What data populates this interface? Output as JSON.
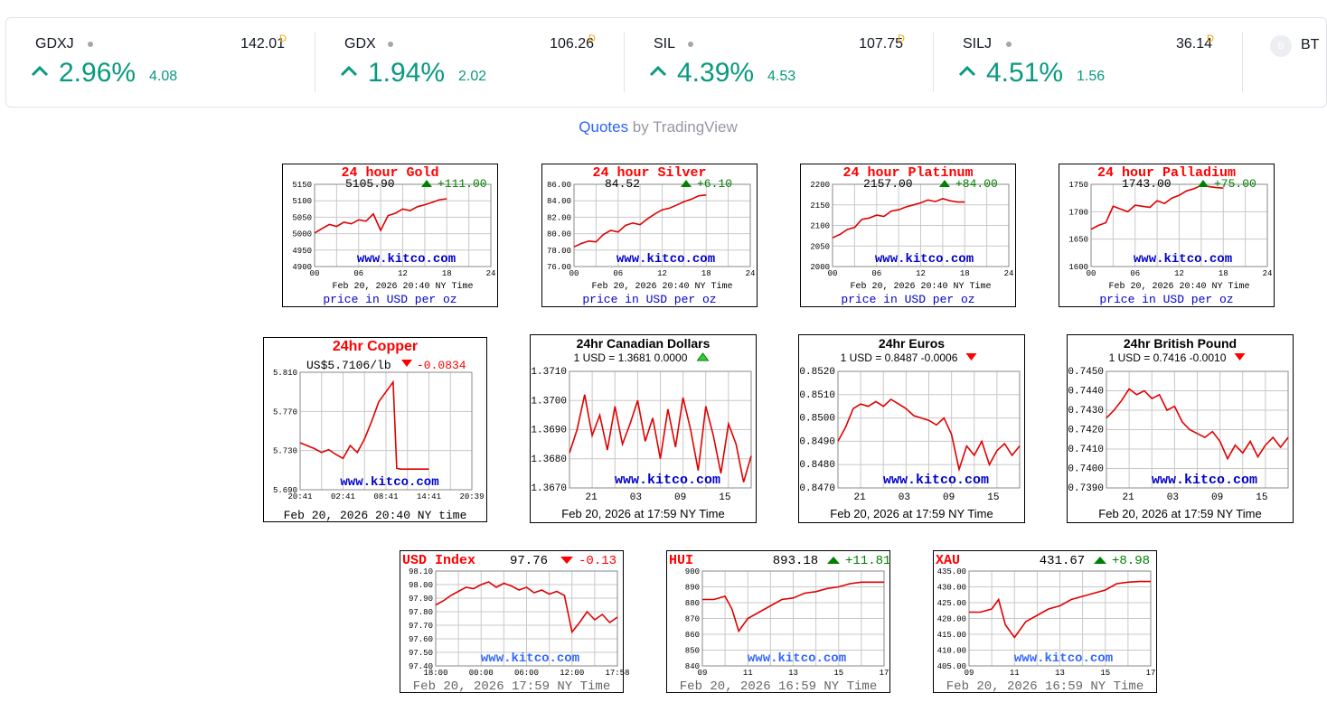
{
  "ticker": [
    {
      "symbol": "GDXJ",
      "price": "142.01",
      "flag": "D",
      "pct": "2.96%",
      "change": "4.08"
    },
    {
      "symbol": "GDX",
      "price": "106.26",
      "flag": "D",
      "pct": "1.94%",
      "change": "2.02"
    },
    {
      "symbol": "SIL",
      "price": "107.75",
      "flag": "D",
      "pct": "4.39%",
      "change": "4.53"
    },
    {
      "symbol": "SILJ",
      "price": "36.14",
      "flag": "D",
      "pct": "4.51%",
      "change": "1.56"
    }
  ],
  "partial_ticker": {
    "badge": "B",
    "symbol": "BT"
  },
  "attribution": {
    "link": "Quotes",
    "suffix": " by TradingView"
  },
  "colors": {
    "up": "#089981",
    "red": "#ff0000",
    "green": "#008000",
    "blue": "#0000cc",
    "flag": "#f0a500"
  },
  "chart_data": [
    {
      "type": "line",
      "id": "gold",
      "title": "24 hour Gold",
      "price": "5105.90",
      "change": "+111.00",
      "direction": "up",
      "yticks": [
        "5150",
        "5100",
        "5050",
        "5000",
        "4950",
        "4900"
      ],
      "ylim": [
        4900,
        5150
      ],
      "xticks": [
        "00",
        "06",
        "12",
        "18",
        "24"
      ],
      "xlim": [
        0,
        24
      ],
      "date_line": "Feb 20, 2026 20:40 NY Time",
      "unit_line": "price in USD per oz",
      "watermark": "www.kitco.com",
      "x": [
        0,
        1,
        2,
        3,
        4,
        5,
        6,
        7,
        8,
        9,
        10,
        11,
        12,
        13,
        14,
        15,
        16,
        17,
        18
      ],
      "y": [
        5002,
        5015,
        5028,
        5022,
        5035,
        5030,
        5042,
        5038,
        5060,
        5010,
        5055,
        5062,
        5075,
        5070,
        5082,
        5088,
        5095,
        5103,
        5106
      ]
    },
    {
      "type": "line",
      "id": "silver",
      "title": "24 hour Silver",
      "price": "84.52",
      "change": "+6.10",
      "direction": "up",
      "yticks": [
        "86.00",
        "84.00",
        "82.00",
        "80.00",
        "78.00",
        "76.00"
      ],
      "ylim": [
        76,
        86
      ],
      "xticks": [
        "00",
        "06",
        "12",
        "18",
        "24"
      ],
      "xlim": [
        0,
        24
      ],
      "date_line": "Feb 20, 2026 20:40 NY Time",
      "unit_line": "price in USD per oz",
      "watermark": "www.kitco.com",
      "x": [
        0,
        1,
        2,
        3,
        4,
        5,
        6,
        7,
        8,
        9,
        10,
        11,
        12,
        13,
        14,
        15,
        16,
        17,
        18
      ],
      "y": [
        78.4,
        78.8,
        79.1,
        79.0,
        79.9,
        80.4,
        80.2,
        81.0,
        81.3,
        81.1,
        81.8,
        82.4,
        82.9,
        83.1,
        83.5,
        83.9,
        84.2,
        84.6,
        84.7
      ]
    },
    {
      "type": "line",
      "id": "platinum",
      "title": "24 hour Platinum",
      "price": "2157.00",
      "change": "+84.00",
      "direction": "up",
      "yticks": [
        "2200",
        "2150",
        "2100",
        "2050",
        "2000"
      ],
      "ylim": [
        2000,
        2200
      ],
      "xticks": [
        "00",
        "06",
        "12",
        "18",
        "24"
      ],
      "xlim": [
        0,
        24
      ],
      "date_line": "Feb 20, 2026 20:40 NY Time",
      "unit_line": "price in USD per oz",
      "watermark": "www.kitco.com",
      "x": [
        0,
        1,
        2,
        3,
        4,
        5,
        6,
        7,
        8,
        9,
        10,
        11,
        12,
        13,
        14,
        15,
        16,
        17,
        18
      ],
      "y": [
        2070,
        2078,
        2090,
        2095,
        2115,
        2118,
        2125,
        2122,
        2135,
        2138,
        2145,
        2150,
        2155,
        2162,
        2158,
        2165,
        2160,
        2157,
        2157
      ]
    },
    {
      "type": "line",
      "id": "palladium",
      "title": "24 hour Palladium",
      "price": "1743.00",
      "change": "+75.00",
      "direction": "up",
      "yticks": [
        "1750",
        "1700",
        "1650",
        "1600"
      ],
      "ylim": [
        1600,
        1750
      ],
      "xticks": [
        "00",
        "06",
        "12",
        "18",
        "24"
      ],
      "xlim": [
        0,
        24
      ],
      "date_line": "Feb 20, 2026 20:40 NY Time",
      "unit_line": "price in USD per oz",
      "watermark": "www.kitco.com",
      "x": [
        0,
        1,
        2,
        3,
        4,
        5,
        6,
        7,
        8,
        9,
        10,
        11,
        12,
        13,
        14,
        15,
        16,
        17,
        18
      ],
      "y": [
        1668,
        1675,
        1680,
        1710,
        1705,
        1700,
        1712,
        1710,
        1708,
        1720,
        1715,
        1725,
        1730,
        1738,
        1742,
        1748,
        1746,
        1744,
        1743
      ]
    },
    {
      "type": "line",
      "id": "copper",
      "title": "24hr Copper",
      "price": "US$5.7106/lb",
      "change": "-0.0834",
      "direction": "down",
      "yticks": [
        "5.810",
        "5.770",
        "5.730",
        "5.690"
      ],
      "ylim": [
        5.69,
        5.81
      ],
      "xticks": [
        "20:41",
        "02:41",
        "08:41",
        "14:41",
        "20:39"
      ],
      "xlim": [
        0,
        24
      ],
      "date_line": "Feb 20, 2026 20:40 NY time",
      "watermark": "www.kitco.com",
      "x": [
        0,
        1,
        2,
        3,
        4,
        5,
        6,
        7,
        8,
        9,
        10,
        11,
        12,
        13,
        13.5,
        14,
        15,
        16,
        17,
        18
      ],
      "y": [
        5.738,
        5.735,
        5.732,
        5.728,
        5.731,
        5.726,
        5.722,
        5.735,
        5.728,
        5.742,
        5.76,
        5.78,
        5.79,
        5.8,
        5.712,
        5.711,
        5.711,
        5.711,
        5.711,
        5.711
      ]
    },
    {
      "type": "line",
      "id": "cad",
      "title": "24hr Canadian Dollars",
      "subtitle": "1 USD = 1.3681  0.0000",
      "direction": "up",
      "yticks": [
        "1.3710",
        "1.3700",
        "1.3690",
        "1.3680",
        "1.3670"
      ],
      "ylim": [
        1.367,
        1.371
      ],
      "xticks": [
        "21",
        "03",
        "09",
        "15"
      ],
      "xlim": [
        0,
        24
      ],
      "date_line": "Feb 20, 2026 at 17:59 NY Time",
      "watermark": "www.kitco.com",
      "x": [
        0,
        1,
        2,
        3,
        4,
        5,
        6,
        7,
        8,
        9,
        10,
        11,
        12,
        13,
        14,
        15,
        16,
        17,
        18,
        19,
        20,
        21,
        22,
        23,
        24
      ],
      "y": [
        1.3682,
        1.369,
        1.3702,
        1.3688,
        1.3695,
        1.3683,
        1.3698,
        1.3685,
        1.3692,
        1.37,
        1.3686,
        1.3694,
        1.368,
        1.3697,
        1.3684,
        1.3701,
        1.369,
        1.3676,
        1.3698,
        1.3688,
        1.3675,
        1.3692,
        1.3685,
        1.3672,
        1.3681
      ]
    },
    {
      "type": "line",
      "id": "eur",
      "title": "24hr Euros",
      "subtitle": "1 USD = 0.8487  -0.0006",
      "direction": "down",
      "yticks": [
        "0.8520",
        "0.8510",
        "0.8500",
        "0.8490",
        "0.8480",
        "0.8470"
      ],
      "ylim": [
        0.847,
        0.852
      ],
      "xticks": [
        "21",
        "03",
        "09",
        "15"
      ],
      "xlim": [
        0,
        24
      ],
      "date_line": "Feb 20, 2026 at 17:59 NY Time",
      "watermark": "www.kitco.com",
      "x": [
        0,
        1,
        2,
        3,
        4,
        5,
        6,
        7,
        8,
        9,
        10,
        11,
        12,
        13,
        14,
        15,
        16,
        17,
        18,
        19,
        20,
        21,
        22,
        23,
        24
      ],
      "y": [
        0.849,
        0.8496,
        0.8504,
        0.8506,
        0.8505,
        0.8507,
        0.8505,
        0.8508,
        0.8506,
        0.8504,
        0.8501,
        0.85,
        0.8499,
        0.8497,
        0.85,
        0.8493,
        0.8478,
        0.8488,
        0.8484,
        0.849,
        0.848,
        0.8486,
        0.8489,
        0.8484,
        0.8488
      ]
    },
    {
      "type": "line",
      "id": "gbp",
      "title": "24hr British Pound",
      "subtitle": "1 USD = 0.7416  -0.0010",
      "direction": "down",
      "yticks": [
        "0.7450",
        "0.7440",
        "0.7430",
        "0.7420",
        "0.7410",
        "0.7400",
        "0.7390"
      ],
      "ylim": [
        0.739,
        0.745
      ],
      "xticks": [
        "21",
        "03",
        "09",
        "15"
      ],
      "xlim": [
        0,
        24
      ],
      "date_line": "Feb 20, 2026 at 17:59 NY Time",
      "watermark": "www.kitco.com",
      "x": [
        0,
        1,
        2,
        3,
        4,
        5,
        6,
        7,
        8,
        9,
        10,
        11,
        12,
        13,
        14,
        15,
        16,
        17,
        18,
        19,
        20,
        21,
        22,
        23,
        24
      ],
      "y": [
        0.7426,
        0.743,
        0.7435,
        0.7441,
        0.7438,
        0.744,
        0.7436,
        0.7438,
        0.743,
        0.7432,
        0.7424,
        0.742,
        0.7418,
        0.7416,
        0.7419,
        0.7414,
        0.7405,
        0.7412,
        0.7408,
        0.7414,
        0.7406,
        0.7412,
        0.7416,
        0.7411,
        0.7416
      ]
    },
    {
      "type": "line",
      "id": "usd",
      "title": "USD Index",
      "price": "97.76",
      "change": "-0.13",
      "direction": "down",
      "yticks": [
        "98.10",
        "98.00",
        "97.90",
        "97.80",
        "97.70",
        "97.60",
        "97.50",
        "97.40"
      ],
      "ylim": [
        97.4,
        98.1
      ],
      "xticks": [
        "18:00",
        "00:00",
        "06:00",
        "12:00",
        "17:58"
      ],
      "xlim": [
        0,
        24
      ],
      "date_line": "Feb 20, 2026 17:59 NY Time",
      "watermark": "www.kitco.com",
      "x": [
        0,
        1,
        2,
        3,
        4,
        5,
        6,
        7,
        8,
        9,
        10,
        11,
        12,
        13,
        14,
        15,
        16,
        17,
        18,
        19,
        20,
        21,
        22,
        23,
        24
      ],
      "y": [
        97.85,
        97.88,
        97.92,
        97.95,
        97.98,
        97.97,
        98.0,
        98.02,
        97.98,
        98.01,
        97.99,
        97.96,
        97.98,
        97.94,
        97.96,
        97.93,
        97.95,
        97.92,
        97.65,
        97.72,
        97.8,
        97.74,
        97.78,
        97.72,
        97.76
      ]
    },
    {
      "type": "line",
      "id": "hui",
      "title": "HUI",
      "price": "893.18",
      "change": "+11.81",
      "direction": "up",
      "yticks": [
        "900",
        "890",
        "880",
        "870",
        "860",
        "850",
        "840"
      ],
      "ylim": [
        840,
        900
      ],
      "xticks": [
        "09",
        "11",
        "13",
        "15",
        "17"
      ],
      "xlim": [
        9,
        17
      ],
      "date_line": "Feb 20, 2026 16:59 NY Time",
      "watermark": "www.kitco.com",
      "x": [
        9,
        9.5,
        10,
        10.3,
        10.6,
        11,
        11.5,
        12,
        12.5,
        13,
        13.5,
        14,
        14.5,
        15,
        15.5,
        16,
        16.5,
        17
      ],
      "y": [
        882,
        882,
        884,
        876,
        862,
        870,
        874,
        878,
        882,
        883,
        886,
        887,
        889,
        890,
        892,
        893,
        893,
        893
      ]
    },
    {
      "type": "line",
      "id": "xau",
      "title": "XAU",
      "price": "431.67",
      "change": "+8.98",
      "direction": "up",
      "yticks": [
        "435.00",
        "430.00",
        "425.00",
        "420.00",
        "415.00",
        "410.00",
        "405.00"
      ],
      "ylim": [
        405,
        435
      ],
      "xticks": [
        "09",
        "11",
        "13",
        "15",
        "17"
      ],
      "xlim": [
        9,
        17
      ],
      "date_line": "Feb 20, 2026 16:59 NY Time",
      "watermark": "www.kitco.com",
      "x": [
        9,
        9.5,
        10,
        10.3,
        10.6,
        11,
        11.5,
        12,
        12.5,
        13,
        13.5,
        14,
        14.5,
        15,
        15.5,
        16,
        16.5,
        17
      ],
      "y": [
        422,
        422,
        423,
        426,
        418,
        414,
        419,
        421,
        423,
        424,
        426,
        427,
        428,
        429,
        431,
        431.5,
        431.7,
        431.7
      ]
    }
  ]
}
